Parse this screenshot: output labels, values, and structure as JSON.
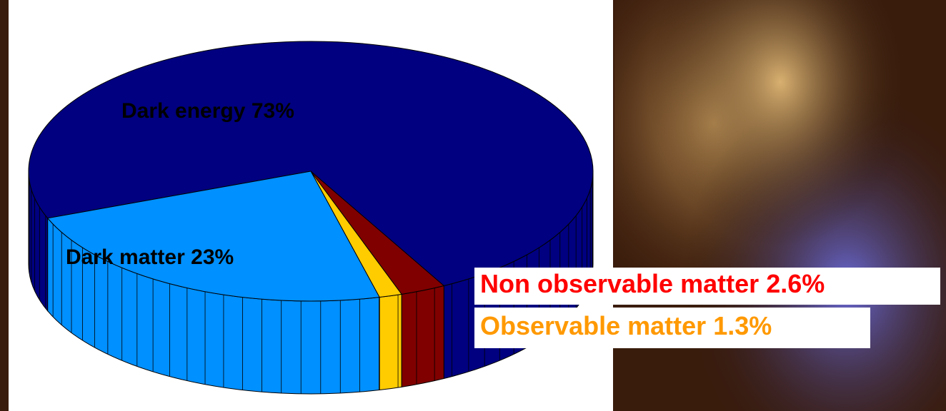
{
  "chart_data": {
    "type": "pie",
    "categories": [
      "Dark energy",
      "Non observable matter",
      "Observable matter",
      "Dark matter"
    ],
    "values": [
      73,
      2.6,
      1.3,
      23
    ],
    "value_labels": [
      "73%",
      "2.6%",
      "1.3%",
      "23%"
    ],
    "colors": [
      "#000080",
      "#800000",
      "#ffcc00",
      "#0090ff"
    ],
    "label_colors": [
      "#000000",
      "#ff0000",
      "#ff9900",
      "#000000"
    ]
  }
}
